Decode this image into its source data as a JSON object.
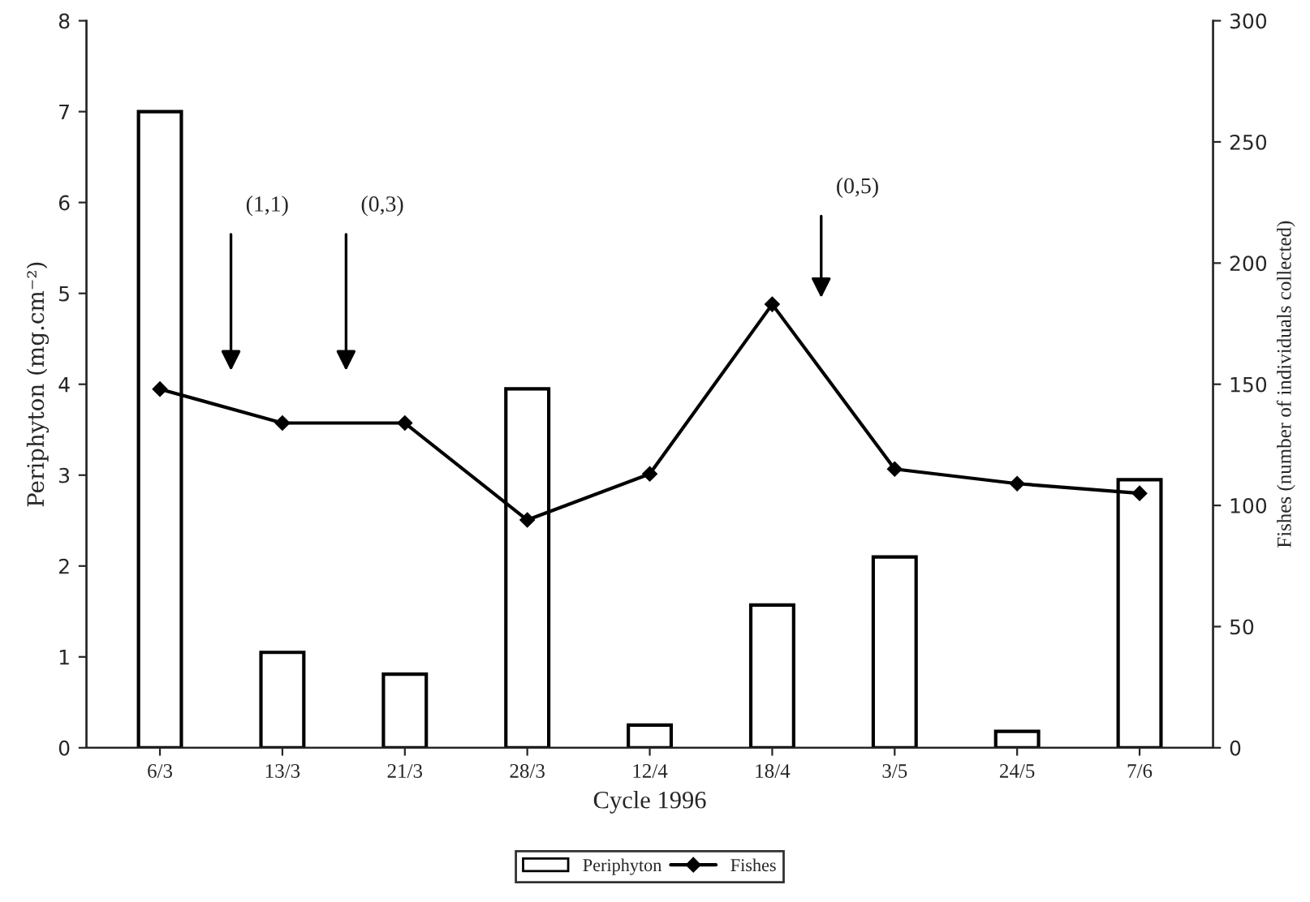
{
  "chart_data": {
    "type": "bar",
    "xlabel": "Cycle 1996",
    "ylabel": "Periphyton (mg.cm⁻²)",
    "y2label": "Fishes (number of individuals collected)",
    "categories": [
      "6/3",
      "13/3",
      "21/3",
      "28/3",
      "12/4",
      "18/4",
      "3/5",
      "24/5",
      "7/6"
    ],
    "series": [
      {
        "name": "Periphyton",
        "color": "#ffffff",
        "values": [
          7.0,
          1.05,
          0.81,
          3.95,
          0.25,
          1.57,
          2.1,
          0.18,
          2.95
        ]
      },
      {
        "name": "Fishes",
        "type": "line",
        "axis": "y2",
        "color": "#000000",
        "marker": "diamond",
        "values": [
          148,
          134,
          134,
          94,
          113,
          183,
          115,
          109,
          105
        ]
      }
    ],
    "ylim": [
      0,
      8
    ],
    "yticks": [
      0,
      1,
      2,
      3,
      4,
      5,
      6,
      7,
      8
    ],
    "y2lim": [
      0,
      300
    ],
    "y2ticks": [
      0,
      50,
      100,
      150,
      200,
      250,
      300
    ],
    "annotations": [
      "(1,1)",
      "(0,3)",
      "(0,5)"
    ],
    "legend": "bottom",
    "grid": false
  }
}
